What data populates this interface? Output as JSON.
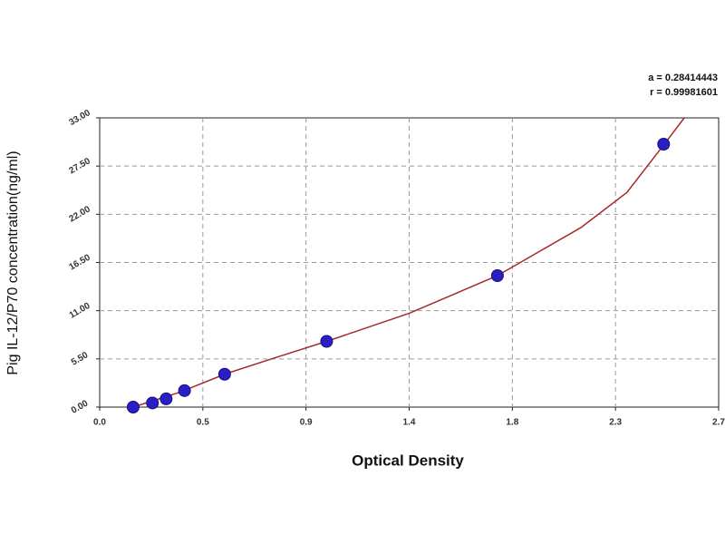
{
  "chart_data": {
    "type": "scatter",
    "xlabel": "Optical Density",
    "ylabel": "Pig IL-12/P70 concentration(ng/ml)",
    "annotations": [
      "a = 0.28414443",
      "r = 0.99981601"
    ],
    "xlim": [
      0,
      2.7
    ],
    "xticks": [
      {
        "value": 0,
        "label": "0.0"
      },
      {
        "value": 0.45,
        "label": "0.5"
      },
      {
        "value": 0.9,
        "label": "0.9"
      },
      {
        "value": 1.35,
        "label": "1.4"
      },
      {
        "value": 1.8,
        "label": "1.8"
      },
      {
        "value": 2.25,
        "label": "2.3"
      },
      {
        "value": 2.7,
        "label": "2.7"
      }
    ],
    "ylim": [
      0,
      33
    ],
    "yticks": [
      {
        "value": 0,
        "label": "0.00"
      },
      {
        "value": 5.5,
        "label": "5.50"
      },
      {
        "value": 11,
        "label": "11.00"
      },
      {
        "value": 16.5,
        "label": "16.50"
      },
      {
        "value": 22,
        "label": "22.00"
      },
      {
        "value": 27.5,
        "label": "27.50"
      },
      {
        "value": 33,
        "label": "33.00"
      }
    ],
    "grid": true,
    "series": [
      {
        "color": "#2a1fc4",
        "x": [
          0.146,
          0.23,
          0.29,
          0.37,
          0.545,
          0.99,
          1.735,
          2.46
        ],
        "values": [
          0,
          0.47,
          0.94,
          1.88,
          3.75,
          7.5,
          15,
          30
        ]
      }
    ],
    "fit": {
      "color": "#a82828",
      "x": [
        0.146,
        0.35,
        0.55,
        0.75,
        0.99,
        1.35,
        1.735,
        2.1,
        2.3,
        2.46,
        2.55
      ],
      "values": [
        0,
        1.7,
        3.8,
        5.5,
        7.5,
        10.7,
        15,
        20.5,
        24.5,
        29.9,
        33
      ]
    }
  }
}
